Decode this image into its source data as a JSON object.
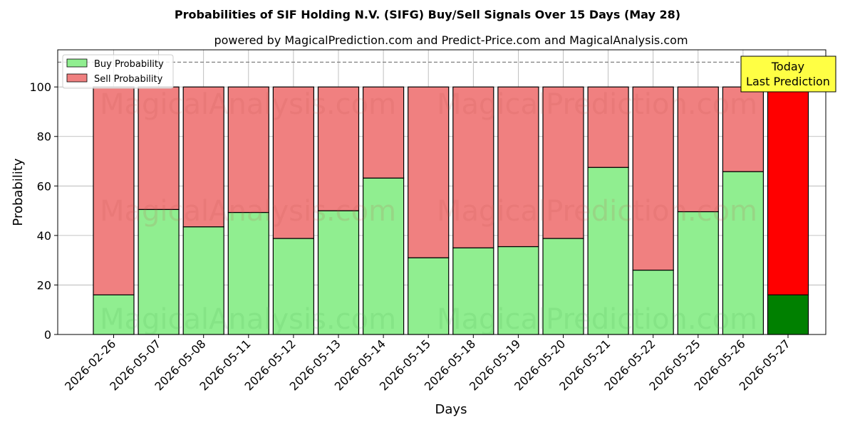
{
  "colors": {
    "buy": "#90ee90",
    "sell": "#f08080",
    "today_buy": "#008000",
    "today_sell": "#ff0000",
    "today_box": "#ffff44",
    "grid": "#b0b0b0"
  },
  "watermarks": [
    "MagicalAnalysis.com",
    "MagicalPrediction.com"
  ],
  "today_box": {
    "line1": "Today",
    "line2": "Last Prediction"
  },
  "chart_data": {
    "type": "bar",
    "stacked": true,
    "title": "Probabilities of SIF Holding N.V. (SIFG) Buy/Sell Signals Over 15 Days (May 28)",
    "subtitle": "powered by MagicalPrediction.com and Predict-Price.com and MagicalAnalysis.com",
    "xlabel": "Days",
    "ylabel": "Probability",
    "ylim": [
      0,
      115
    ],
    "yticks": [
      0,
      20,
      40,
      60,
      80,
      100
    ],
    "reference_line": 110,
    "grid": true,
    "legend_position": "top-left",
    "categories": [
      "2026-02-26",
      "2026-05-07",
      "2026-05-08",
      "2026-05-11",
      "2026-05-12",
      "2026-05-13",
      "2026-05-14",
      "2026-05-15",
      "2026-05-18",
      "2026-05-19",
      "2026-05-20",
      "2026-05-21",
      "2026-05-22",
      "2026-05-25",
      "2026-05-26",
      "2026-05-27"
    ],
    "series": [
      {
        "name": "Buy Probability",
        "values": [
          16,
          50.5,
          43.5,
          49.3,
          38.8,
          50,
          63.2,
          31,
          35,
          35.5,
          38.8,
          67.5,
          26,
          49.6,
          65.8,
          16
        ]
      },
      {
        "name": "Sell Probability",
        "values": [
          84,
          49.5,
          56.5,
          50.7,
          61.2,
          50,
          36.8,
          69,
          65,
          64.5,
          61.2,
          32.5,
          74,
          50.4,
          34.2,
          84
        ]
      }
    ]
  }
}
